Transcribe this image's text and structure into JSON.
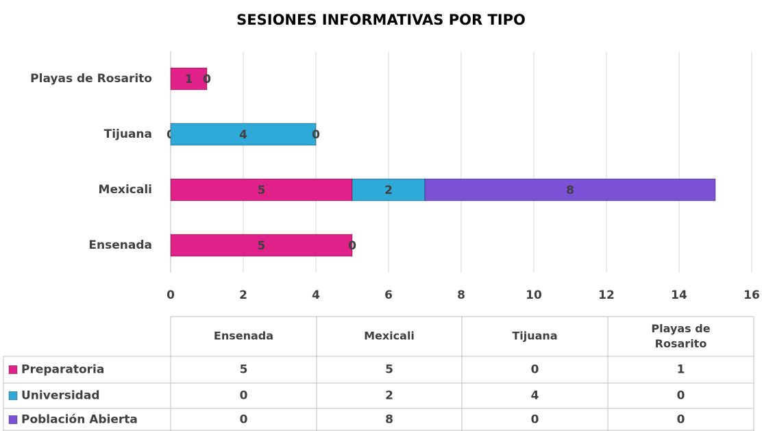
{
  "chart_data": {
    "type": "stacked_bar_horizontal",
    "title": "SESIONES INFORMATIVAS POR TIPO",
    "categories": [
      "Ensenada",
      "Mexicali",
      "Tijuana",
      "Playas de Rosarito"
    ],
    "series": [
      {
        "name": "Preparatoria",
        "color": "#e0218a",
        "values": [
          5,
          5,
          0,
          1
        ]
      },
      {
        "name": "Universidad",
        "color": "#2fa9d8",
        "values": [
          0,
          2,
          4,
          0
        ]
      },
      {
        "name": "Población Abierta",
        "color": "#7b52d6",
        "values": [
          0,
          8,
          0,
          0
        ]
      }
    ],
    "xlim": [
      0,
      16
    ],
    "xticks": [
      0,
      2,
      4,
      6,
      8,
      10,
      12,
      14,
      16
    ],
    "grid": true
  }
}
